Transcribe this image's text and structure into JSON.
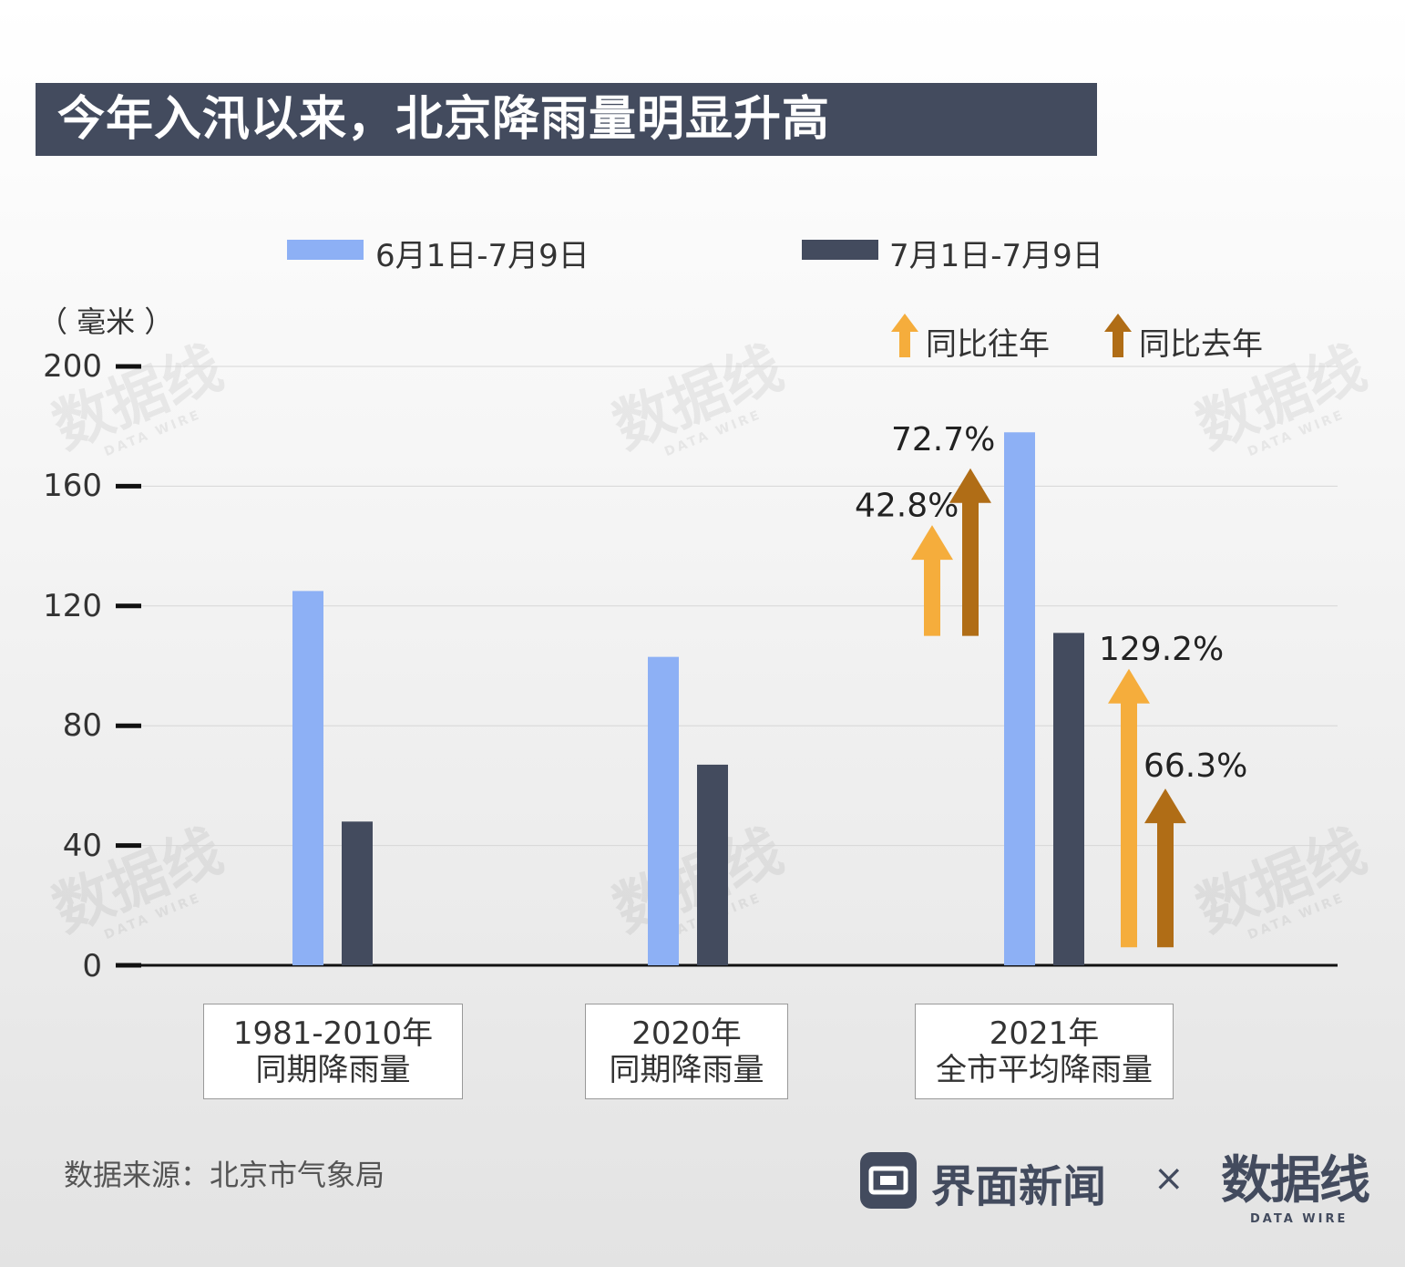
{
  "title": "今年入汛以来，北京降雨量明显升高",
  "legend": {
    "series1": "6月1日-7月9日",
    "series2": "7月1日-7月9日",
    "arrow1": "同比往年",
    "arrow2": "同比去年"
  },
  "unit": "（ 毫米 ）",
  "colors": {
    "series1": "#8db0f5",
    "series2": "#434b5e",
    "arrow_past_years": "#f5ad3c",
    "arrow_last_year": "#b06d16",
    "title_bg": "#434b5e"
  },
  "chart_data": {
    "type": "bar",
    "categories": [
      {
        "line1": "1981-2010年",
        "line2": "同期降雨量"
      },
      {
        "line1": "2020年",
        "line2": "同期降雨量"
      },
      {
        "line1": "2021年",
        "line2": "全市平均降雨量"
      }
    ],
    "series": [
      {
        "name": "6月1日-7月9日",
        "values": [
          125,
          103,
          178
        ]
      },
      {
        "name": "7月1日-7月9日",
        "values": [
          48,
          67,
          111
        ]
      }
    ],
    "ylim": [
      0,
      200
    ],
    "yticks": [
      "0",
      "40",
      "80",
      "120",
      "160",
      "200"
    ],
    "grid": true,
    "legend_position": "top",
    "annotations": [
      {
        "series": "6月1日-7月9日",
        "vs": "同比往年",
        "label": "42.8%"
      },
      {
        "series": "6月1日-7月9日",
        "vs": "同比去年",
        "label": "72.7%"
      },
      {
        "series": "7月1日-7月9日",
        "vs": "同比往年",
        "label": "129.2%"
      },
      {
        "series": "7月1日-7月9日",
        "vs": "同比去年",
        "label": "66.3%"
      }
    ]
  },
  "footer": {
    "source": "数据来源：北京市气象局",
    "brand": "界面新闻",
    "times": "×",
    "logo": "数据线",
    "logo_sub": "DATA WIRE"
  }
}
